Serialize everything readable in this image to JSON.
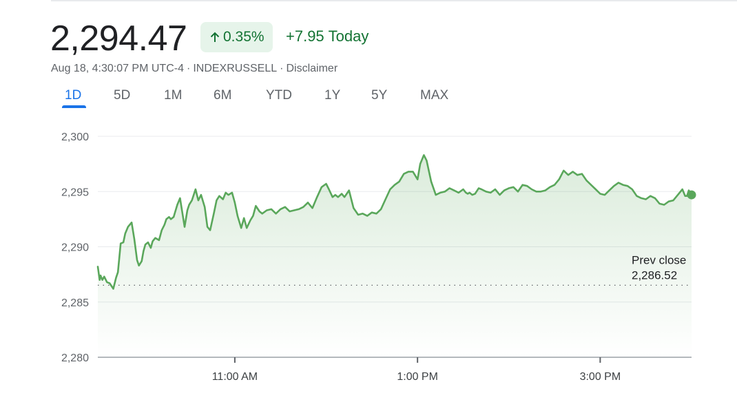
{
  "quote": {
    "price": "2,294.47",
    "change_pct": "0.35%",
    "change_abs": "+7.95",
    "change_period": "Today",
    "timestamp": "Aug 18, 4:30:07 PM UTC-4",
    "separator": "·",
    "symbol": "INDEXRUSSELL",
    "disclaimer": "Disclaimer"
  },
  "colors": {
    "positive": "#137333",
    "positive_bg": "#e6f4ea",
    "line": "#5aa75b",
    "accent": "#1a73e8"
  },
  "tabs": [
    {
      "label": "1D",
      "active": true
    },
    {
      "label": "5D",
      "active": false
    },
    {
      "label": "1M",
      "active": false
    },
    {
      "label": "6M",
      "active": false
    },
    {
      "label": "YTD",
      "active": false
    },
    {
      "label": "1Y",
      "active": false
    },
    {
      "label": "5Y",
      "active": false
    },
    {
      "label": "MAX",
      "active": false
    }
  ],
  "chart_data": {
    "type": "area",
    "title": "",
    "xlabel": "",
    "ylabel": "",
    "ylim": [
      2280,
      2300
    ],
    "y_ticks": [
      2300,
      2295,
      2290,
      2285,
      2280
    ],
    "y_tick_labels": [
      "2,300",
      "2,295",
      "2,290",
      "2,285",
      "2,280"
    ],
    "xlim": [
      9.5,
      16.0
    ],
    "x_ticks": [
      11.0,
      13.0,
      15.0
    ],
    "x_tick_labels": [
      "11:00 AM",
      "1:00 PM",
      "3:00 PM"
    ],
    "grid": true,
    "reference_line": {
      "label_1": "Prev close",
      "label_2": "2,286.52",
      "value": 2286.52,
      "style": "dotted"
    },
    "series": [
      {
        "x": [
          9.5,
          9.52,
          9.53,
          9.55,
          9.57,
          9.6,
          9.63,
          9.67,
          9.7,
          9.72,
          9.75,
          9.78,
          9.8,
          9.83,
          9.87,
          9.9,
          9.93,
          9.95,
          9.98,
          10.0,
          10.02,
          10.05,
          10.08,
          10.1,
          10.13,
          10.17,
          10.2,
          10.23,
          10.25,
          10.28,
          10.3,
          10.33,
          10.37,
          10.4,
          10.45,
          10.48,
          10.5,
          10.53,
          10.57,
          10.6,
          10.63,
          10.67,
          10.7,
          10.73,
          10.77,
          10.8,
          10.83,
          10.87,
          10.9,
          10.93,
          10.97,
          11.0,
          11.03,
          11.07,
          11.1,
          11.13,
          11.17,
          11.2,
          11.23,
          11.27,
          11.3,
          11.35,
          11.4,
          11.45,
          11.5,
          11.55,
          11.6,
          11.65,
          11.7,
          11.75,
          11.8,
          11.85,
          11.9,
          11.95,
          12.0,
          12.03,
          12.07,
          12.1,
          12.13,
          12.17,
          12.2,
          12.25,
          12.3,
          12.35,
          12.4,
          12.45,
          12.5,
          12.55,
          12.6,
          12.65,
          12.7,
          12.75,
          12.8,
          12.85,
          12.9,
          12.95,
          13.0,
          13.03,
          13.07,
          13.1,
          13.15,
          13.2,
          13.25,
          13.3,
          13.35,
          13.4,
          13.45,
          13.5,
          13.53,
          13.55,
          13.57,
          13.6,
          13.63,
          13.67,
          13.7,
          13.75,
          13.8,
          13.85,
          13.9,
          13.95,
          14.0,
          14.05,
          14.1,
          14.15,
          14.2,
          14.25,
          14.3,
          14.35,
          14.4,
          14.45,
          14.5,
          14.55,
          14.6,
          14.65,
          14.7,
          14.75,
          14.8,
          14.85,
          14.9,
          14.95,
          15.0,
          15.05,
          15.1,
          15.15,
          15.2,
          15.25,
          15.3,
          15.35,
          15.4,
          15.45,
          15.5,
          15.55,
          15.6,
          15.65,
          15.7,
          15.75,
          15.8,
          15.85,
          15.9,
          15.93,
          15.95,
          15.97,
          16.0
        ],
        "values": [
          2288.2,
          2287.0,
          2287.4,
          2287.0,
          2287.3,
          2286.8,
          2286.7,
          2286.2,
          2287.2,
          2287.7,
          2290.3,
          2290.4,
          2291.2,
          2291.8,
          2292.2,
          2290.7,
          2288.8,
          2288.3,
          2288.7,
          2289.6,
          2290.2,
          2290.4,
          2289.9,
          2290.5,
          2290.8,
          2290.6,
          2291.5,
          2292.0,
          2292.5,
          2292.7,
          2292.5,
          2292.7,
          2293.8,
          2294.4,
          2291.8,
          2293.3,
          2293.8,
          2294.2,
          2295.2,
          2294.2,
          2294.7,
          2293.6,
          2291.8,
          2291.5,
          2293.0,
          2294.2,
          2294.6,
          2294.3,
          2294.9,
          2294.7,
          2294.9,
          2294.0,
          2292.8,
          2291.7,
          2292.6,
          2291.7,
          2292.4,
          2292.8,
          2293.7,
          2293.2,
          2293.0,
          2293.3,
          2293.4,
          2293.0,
          2293.4,
          2293.6,
          2293.2,
          2293.3,
          2293.4,
          2293.6,
          2294.0,
          2293.5,
          2294.5,
          2295.4,
          2295.7,
          2295.2,
          2294.5,
          2294.7,
          2294.5,
          2294.8,
          2294.5,
          2295.1,
          2293.5,
          2292.9,
          2293.0,
          2292.8,
          2293.1,
          2293.0,
          2293.4,
          2294.3,
          2295.2,
          2295.6,
          2295.9,
          2296.6,
          2296.8,
          2296.8,
          2296.1,
          2297.5,
          2298.3,
          2297.8,
          2295.9,
          2294.7,
          2294.9,
          2295.0,
          2295.3,
          2295.1,
          2294.9,
          2295.2,
          2294.9,
          2294.8,
          2294.9,
          2294.7,
          2294.8,
          2295.3,
          2295.2,
          2295.0,
          2294.9,
          2295.2,
          2294.7,
          2295.1,
          2295.3,
          2295.4,
          2295.0,
          2295.6,
          2295.5,
          2295.2,
          2295.0,
          2295.0,
          2295.1,
          2295.4,
          2295.6,
          2296.1,
          2296.9,
          2296.5,
          2296.8,
          2296.5,
          2296.6,
          2296.0,
          2295.6,
          2295.2,
          2294.8,
          2294.7,
          2295.1,
          2295.5,
          2295.8,
          2295.6,
          2295.5,
          2295.2,
          2294.6,
          2294.4,
          2294.3,
          2294.6,
          2294.4,
          2293.9,
          2293.8,
          2294.1,
          2294.2,
          2294.7,
          2295.2,
          2294.6,
          2294.6,
          2295.1,
          2294.7
        ]
      }
    ]
  }
}
